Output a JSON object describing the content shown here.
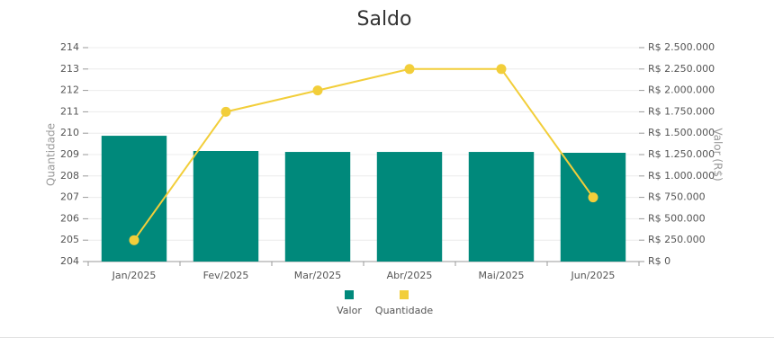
{
  "chart_data": {
    "type": "combo",
    "title": "Saldo",
    "categories": [
      "Jan/2025",
      "Fev/2025",
      "Mar/2025",
      "Abr/2025",
      "Mai/2025",
      "Jun/2025"
    ],
    "series": [
      {
        "name": "Valor",
        "type": "bar",
        "axis": "y2",
        "color": "#00897b",
        "values": [
          1470000,
          1292000,
          1281000,
          1281000,
          1281000,
          1271000
        ]
      },
      {
        "name": "Quantidade",
        "type": "line",
        "color": "#f2ce3a",
        "values": [
          205,
          211,
          212,
          213,
          213,
          207
        ]
      }
    ],
    "y_label": "Quantidade",
    "y2_label": "Valor (R$)",
    "ylim": [
      204,
      214
    ],
    "yticks": [
      204,
      205,
      206,
      207,
      208,
      209,
      210,
      211,
      212,
      213,
      214
    ],
    "y2lim": [
      0,
      2500000
    ],
    "y2ticks": [
      {
        "value": 0,
        "label": "R$ 0"
      },
      {
        "value": 250000,
        "label": "R$ 250.000"
      },
      {
        "value": 500000,
        "label": "R$ 500.000"
      },
      {
        "value": 750000,
        "label": "R$ 750.000"
      },
      {
        "value": 1000000,
        "label": "R$ 1.000.000"
      },
      {
        "value": 1250000,
        "label": "R$ 1.250.000"
      },
      {
        "value": 1500000,
        "label": "R$ 1.500.000"
      },
      {
        "value": 1750000,
        "label": "R$ 1.750.000"
      },
      {
        "value": 2000000,
        "label": "R$ 2.000.000"
      },
      {
        "value": 2250000,
        "label": "R$ 2.250.000"
      },
      {
        "value": 2500000,
        "label": "R$ 2.500.000"
      }
    ],
    "grid": true,
    "legend": "bottom"
  }
}
